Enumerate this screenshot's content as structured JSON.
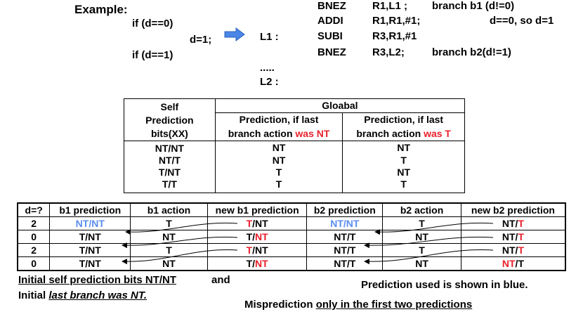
{
  "example": {
    "title": "Example:",
    "if1": "if (d==0)",
    "d1": "d=1;",
    "if2": "if (d==1)",
    "l1": "L1 :",
    "dots": ".....",
    "l2": "L2 :",
    "asm": [
      {
        "op": "BNEZ",
        "args": "R1,L1  ;",
        "comment": "branch b1 (d!=0)"
      },
      {
        "op": "ADDI",
        "args": "R1,R1,#1;",
        "comment": "d==0, so d=1"
      },
      {
        "op": "SUBI",
        "args": "R3,R1,#1",
        "comment": ""
      },
      {
        "op": "BNEZ",
        "args": "R3,L2;",
        "comment": "branch b2(d!=1)"
      }
    ],
    "arrow_color": "#4a86e8"
  },
  "global_table": {
    "self_header": [
      "Self",
      "Prediction",
      "bits(XX)"
    ],
    "global_header": "Gloabal",
    "col_nt": {
      "line1": "Prediction, if last",
      "line2": "branch action ",
      "red": "was NT"
    },
    "col_t": {
      "line1": "Prediction, if last",
      "line2": "branch action ",
      "red": "was T"
    },
    "rows": [
      {
        "bits": "NT/NT",
        "nt": "NT",
        "t": "NT"
      },
      {
        "bits": "NT/T",
        "nt": "NT",
        "t": "T"
      },
      {
        "bits": "T/NT",
        "nt": "T",
        "t": "NT"
      },
      {
        "bits": "T/T",
        "nt": "T",
        "t": "T"
      }
    ]
  },
  "branch_table": {
    "headers": [
      "d=?",
      "b1 prediction",
      "b1 action",
      "new b1 prediction",
      "b2 prediction",
      "b2 action",
      "new b2 prediction"
    ],
    "rows": [
      {
        "d": "2",
        "b1p_a": "NT",
        "b1p_s": "/",
        "b1p_b": "NT",
        "b1p_blue": "both",
        "b1a": "T",
        "nb1_a": "T",
        "nb1_s": "/",
        "nb1_b": "NT",
        "nb1_red": "first",
        "b2p_a": "NT",
        "b2p_s": "/",
        "b2p_b": "NT",
        "b2p_blue": "both",
        "b2a": "T",
        "nb2_a": "NT",
        "nb2_s": "/",
        "nb2_b": "T",
        "nb2_red": "second"
      },
      {
        "d": "0",
        "b1p_a": "T",
        "b1p_s": "/",
        "b1p_b": "NT",
        "b1p_blue": "none",
        "b1a": "NT",
        "nb1_a": "T",
        "nb1_s": "/",
        "nb1_b": "NT",
        "nb1_red": "second",
        "b2p_a": "NT",
        "b2p_s": "/",
        "b2p_b": "T",
        "b2p_blue": "none",
        "b2a": "NT",
        "nb2_a": "NT",
        "nb2_s": "/",
        "nb2_b": "T",
        "nb2_red": "second"
      },
      {
        "d": "2",
        "b1p_a": "T",
        "b1p_s": "/",
        "b1p_b": "NT",
        "b1p_blue": "none",
        "b1a": "T",
        "nb1_a": "T",
        "nb1_s": "/",
        "nb1_b": "NT",
        "nb1_red": "first",
        "b2p_a": "NT",
        "b2p_s": "/",
        "b2p_b": "T",
        "b2p_blue": "none",
        "b2a": "T",
        "nb2_a": "NT",
        "nb2_s": "/",
        "nb2_b": "T",
        "nb2_red": "second"
      },
      {
        "d": "0",
        "b1p_a": "T",
        "b1p_s": "/",
        "b1p_b": "NT",
        "b1p_blue": "none",
        "b1a": "NT",
        "nb1_a": "T",
        "nb1_s": "/",
        "nb1_b": "NT",
        "nb1_red": "second",
        "b2p_a": "NT",
        "b2p_s": "/",
        "b2p_b": "T",
        "b2p_blue": "none",
        "b2a": "NT",
        "nb2_a": "NT",
        "nb2_s": "/",
        "nb2_b": "T",
        "nb2_red": "first"
      }
    ]
  },
  "notes": {
    "initial_line1": "Initial self prediction bits NT/NT",
    "initial_line1_tail": " and",
    "initial_line2_pre": "Initial ",
    "initial_line2_it": "last branch was NT.",
    "blue_note": "Prediction used is shown in blue.",
    "mispred_pre": "Misprediction ",
    "mispred_u": "only in the first two predictions"
  },
  "colors": {
    "red": "#e8202a",
    "blue": "#5b8def"
  }
}
